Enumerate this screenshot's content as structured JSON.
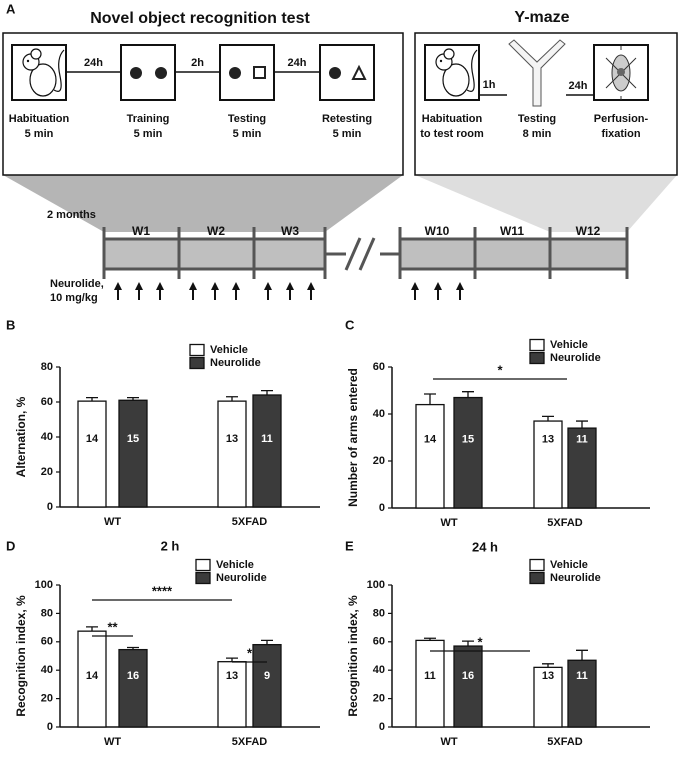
{
  "panel_labels": [
    "A",
    "B",
    "C",
    "D",
    "E"
  ],
  "protocol": {
    "left_title": "Novel object recognition test",
    "right_title": "Y-maze",
    "left_steps": [
      {
        "label": [
          "Habituation",
          "5 min"
        ]
      },
      {
        "label": [
          "Training",
          "5 min"
        ]
      },
      {
        "label": [
          "Testing",
          "5 min"
        ]
      },
      {
        "label": [
          "Retesting",
          "5 min"
        ]
      }
    ],
    "left_intervals": [
      "24h",
      "2h",
      "24h"
    ],
    "right_steps": [
      {
        "label": [
          "Habituation",
          "to test room"
        ]
      },
      {
        "label": [
          "Testing",
          "8 min"
        ]
      },
      {
        "label": [
          "Perfusion-",
          "fixation"
        ]
      }
    ],
    "right_intervals": [
      "1h",
      "24h"
    ]
  },
  "timeline": {
    "age": "2 months",
    "weeks": [
      "W1",
      "W2",
      "W3",
      "W10",
      "W11",
      "W12"
    ],
    "treatment": [
      "Neurolide,",
      "10 mg/kg"
    ]
  },
  "chart_data": [
    {
      "type": "bar",
      "ylabel": "Alternation, %",
      "categories": [
        "WT",
        "5XFAD"
      ],
      "ylim": [
        0,
        80
      ],
      "yticks": [
        0,
        20,
        40,
        60,
        80
      ],
      "series": [
        {
          "name": "Vehicle",
          "color": "#ffffff",
          "values": [
            60.5,
            60.5
          ],
          "errors": [
            2,
            2.5
          ],
          "n": [
            14,
            13
          ]
        },
        {
          "name": "Neurolide",
          "color": "#3b3b3b",
          "values": [
            61,
            64
          ],
          "errors": [
            1.5,
            2.5
          ],
          "n": [
            15,
            11
          ]
        }
      ],
      "annotations": []
    },
    {
      "type": "bar",
      "ylabel": "Number of arms entered",
      "categories": [
        "WT",
        "5XFAD"
      ],
      "ylim": [
        0,
        60
      ],
      "yticks": [
        0,
        20,
        40,
        60
      ],
      "series": [
        {
          "name": "Vehicle",
          "color": "#ffffff",
          "values": [
            44,
            37
          ],
          "errors": [
            4.5,
            2
          ],
          "n": [
            14,
            13
          ]
        },
        {
          "name": "Neurolide",
          "color": "#3b3b3b",
          "values": [
            47,
            34
          ],
          "errors": [
            2.5,
            3
          ],
          "n": [
            15,
            11
          ]
        }
      ],
      "annotations": [
        "*"
      ]
    },
    {
      "type": "bar",
      "title": "2 h",
      "ylabel": "Recognition index, %",
      "categories": [
        "WT",
        "5XFAD"
      ],
      "ylim": [
        0,
        100
      ],
      "yticks": [
        0,
        20,
        40,
        60,
        80,
        100
      ],
      "series": [
        {
          "name": "Vehicle",
          "color": "#ffffff",
          "values": [
            67.5,
            46
          ],
          "errors": [
            3,
            2.5
          ],
          "n": [
            14,
            13
          ]
        },
        {
          "name": "Neurolide",
          "color": "#3b3b3b",
          "values": [
            54.5,
            58
          ],
          "errors": [
            1.5,
            3
          ],
          "n": [
            16,
            9
          ]
        }
      ],
      "annotations": [
        "**",
        "****",
        "*"
      ]
    },
    {
      "type": "bar",
      "title": "24 h",
      "ylabel": "Recognition index, %",
      "categories": [
        "WT",
        "5XFAD"
      ],
      "ylim": [
        0,
        100
      ],
      "yticks": [
        0,
        20,
        40,
        60,
        80,
        100
      ],
      "series": [
        {
          "name": "Vehicle",
          "color": "#ffffff",
          "values": [
            61,
            42
          ],
          "errors": [
            1.5,
            2.5
          ],
          "n": [
            11,
            13
          ]
        },
        {
          "name": "Neurolide",
          "color": "#3b3b3b",
          "values": [
            57,
            47
          ],
          "errors": [
            3.5,
            7
          ],
          "n": [
            16,
            11
          ]
        }
      ],
      "annotations": [
        "*"
      ]
    }
  ]
}
